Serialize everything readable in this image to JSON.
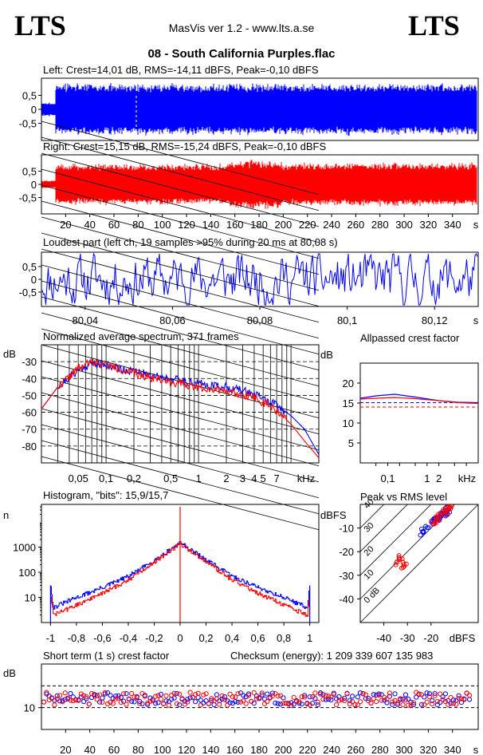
{
  "header": {
    "logo_left": "LTS",
    "logo_right": "LTS",
    "app_title": "MasVis ver 1.2 - www.lts.a.se",
    "file_title": "08 - South California Purples.flac"
  },
  "colors": {
    "left": "#0000ff",
    "right": "#ff0000",
    "axis": "#000000"
  },
  "chart_data": [
    {
      "id": "left_wave",
      "type": "line",
      "title": "Left: Crest=14,01 dB, RMS=-14,11 dBFS, Peak=-0,10 dBFS",
      "yticks": [
        "0,5",
        "0",
        "-0,5"
      ],
      "ylim": [
        -1,
        1
      ],
      "xlim": [
        0,
        356
      ],
      "series": [
        {
          "color": "#0000ff",
          "amplitude": 0.95
        }
      ]
    },
    {
      "id": "right_wave",
      "type": "line",
      "title": "Right: Crest=15,15 dB, RMS=-15,24 dBFS, Peak=-0,10 dBFS",
      "yticks": [
        "0,5",
        "0",
        "-0,5"
      ],
      "ylim": [
        -1,
        1
      ],
      "xlim": [
        0,
        356
      ],
      "xticks": [
        "20",
        "40",
        "60",
        "80",
        "100",
        "120",
        "140",
        "160",
        "180",
        "200",
        "220",
        "240",
        "260",
        "280",
        "300",
        "320",
        "340"
      ],
      "xunit": "s",
      "series": [
        {
          "color": "#ff0000",
          "amplitude": 0.9
        }
      ]
    },
    {
      "id": "loudest",
      "type": "line",
      "title": "Loudest part (left  ch, 19 samples >95% during 20 ms at 80,08 s)",
      "yticks": [
        "0,5",
        "0",
        "-0,5"
      ],
      "ylim": [
        -1,
        1
      ],
      "xlim": [
        80.03,
        80.13
      ],
      "xticks": [
        "80,04",
        "80,06",
        "80,08",
        "80,1",
        "80,12"
      ],
      "xunit": "s",
      "series": [
        {
          "color": "#0000ff"
        }
      ]
    },
    {
      "id": "spectrum",
      "type": "line",
      "title": "Normalized average spectrum, 371 frames",
      "ylabel": "dB",
      "yticks": [
        "-30",
        "-40",
        "-50",
        "-60",
        "-70",
        "-80"
      ],
      "ylim": [
        -90,
        -20
      ],
      "xticks": [
        "0,05",
        "0,1",
        "0,2",
        "0,5",
        "1",
        "2",
        "3",
        "4",
        "5",
        "7"
      ],
      "xunit": "kHz",
      "series": [
        {
          "color": "#0000ff",
          "x_khz": [
            0.02,
            0.03,
            0.05,
            0.07,
            0.1,
            0.2,
            0.5,
            1,
            2,
            4,
            7,
            10,
            14,
            20
          ],
          "y_db": [
            -58,
            -45,
            -35,
            -31,
            -32,
            -36,
            -40,
            -43,
            -45,
            -49,
            -56,
            -62,
            -70,
            -85
          ]
        },
        {
          "color": "#ff0000",
          "x_khz": [
            0.02,
            0.03,
            0.05,
            0.07,
            0.1,
            0.2,
            0.5,
            1,
            2,
            4,
            7,
            10,
            14,
            20
          ],
          "y_db": [
            -58,
            -45,
            -34,
            -30,
            -32,
            -37,
            -42,
            -45,
            -47,
            -51,
            -59,
            -67,
            -77,
            -87
          ]
        }
      ]
    },
    {
      "id": "allpassed_crest",
      "type": "line",
      "title": "Allpassed crest factor",
      "ylabel": "dB",
      "yticks": [
        "20",
        "15",
        "10",
        "5"
      ],
      "ylim": [
        0,
        25
      ],
      "xticks": [
        "0,1",
        "1",
        "2"
      ],
      "xunit": "kHz",
      "reference_lines": [
        15.1,
        14.0
      ],
      "series": [
        {
          "color": "#0000ff",
          "x_khz": [
            0.02,
            0.05,
            0.15,
            0.5,
            2,
            6,
            20
          ],
          "y_db": [
            16.2,
            16.8,
            17.2,
            16.5,
            15.6,
            15.2,
            15.1
          ]
        },
        {
          "color": "#ff0000",
          "x_khz": [
            0.02,
            0.05,
            0.15,
            0.5,
            2,
            6,
            20
          ],
          "y_db": [
            16.0,
            16.2,
            16.4,
            16.1,
            15.6,
            15.1,
            14.9
          ]
        }
      ]
    },
    {
      "id": "histogram",
      "type": "line",
      "title": "Histogram, \"bits\": 15,9/15,7",
      "ylabel": "n",
      "yticks": [
        "1000",
        "100",
        "10"
      ],
      "ylim": [
        1,
        50000
      ],
      "ylog": true,
      "xlim": [
        -1.07,
        1.07
      ],
      "xticks": [
        "-1",
        "-0,8",
        "-0,6",
        "-0,4",
        "-0,2",
        "0",
        "0,2",
        "0,4",
        "0,6",
        "0,8",
        "1"
      ],
      "series": [
        {
          "color": "#0000ff",
          "x": [
            -1,
            -0.98,
            -0.8,
            -0.6,
            -0.4,
            -0.2,
            0,
            0.2,
            0.4,
            0.6,
            0.8,
            0.98,
            1
          ],
          "y": [
            30,
            4,
            10,
            25,
            70,
            300,
            1500,
            300,
            70,
            25,
            10,
            4,
            30
          ]
        },
        {
          "color": "#ff0000",
          "x": [
            -1,
            -0.98,
            -0.8,
            -0.6,
            -0.4,
            -0.2,
            0,
            0.2,
            0.4,
            0.6,
            0.8,
            0.98,
            1
          ],
          "y": [
            12,
            2,
            5,
            15,
            50,
            260,
            1400,
            260,
            50,
            15,
            5,
            2,
            12
          ]
        }
      ]
    },
    {
      "id": "peak_vs_rms",
      "type": "scatter",
      "title": "Peak vs RMS level",
      "ylabel": "dBFS",
      "yticks": [
        "-10",
        "-20",
        "-30",
        "-40"
      ],
      "ylim": [
        -50,
        0
      ],
      "xlim": [
        -50,
        0
      ],
      "xticks": [
        "-40",
        "-30",
        "-20"
      ],
      "xunit": "dBFS",
      "diagonal_labels": [
        "40",
        "30",
        "20",
        "10",
        "0 dB"
      ],
      "series": [
        {
          "color": "#0000ff",
          "x": [
            -24,
            -23,
            -22,
            -20,
            -19,
            -18,
            -17,
            -16,
            -15,
            -14,
            -14,
            -13,
            -13
          ],
          "y": [
            -12,
            -11,
            -9,
            -8,
            -7,
            -6,
            -6,
            -5,
            -4,
            -4,
            -3,
            -3,
            -2
          ]
        },
        {
          "color": "#ff0000",
          "x": [
            -34,
            -33,
            -32,
            -33,
            -31,
            -19,
            -18,
            -17,
            -16,
            -15,
            -14,
            -14,
            -13,
            -12
          ],
          "y": [
            -25,
            -24,
            -26,
            -22,
            -25,
            -8,
            -7,
            -6,
            -5,
            -4,
            -3,
            -2,
            -2,
            -1
          ]
        }
      ]
    },
    {
      "id": "short_term_crest",
      "type": "scatter",
      "title": "Short term (1 s) crest factor",
      "annotation": "Checksum (energy):  1 209 339 607 135 983",
      "ylabel": "dB",
      "yticks": [
        "10"
      ],
      "ylim": [
        5,
        20
      ],
      "xlim": [
        0,
        356
      ],
      "reference_lines": [
        15.0,
        10.0
      ],
      "xticks": [
        "20",
        "40",
        "60",
        "80",
        "100",
        "120",
        "140",
        "160",
        "180",
        "200",
        "220",
        "240",
        "260",
        "280",
        "300",
        "320",
        "340"
      ],
      "xunit": "s",
      "series": [
        {
          "color": "#0000ff",
          "mean": 12.0,
          "spread": 1.4
        },
        {
          "color": "#ff0000",
          "mean": 12.0,
          "spread": 1.5
        }
      ]
    }
  ]
}
